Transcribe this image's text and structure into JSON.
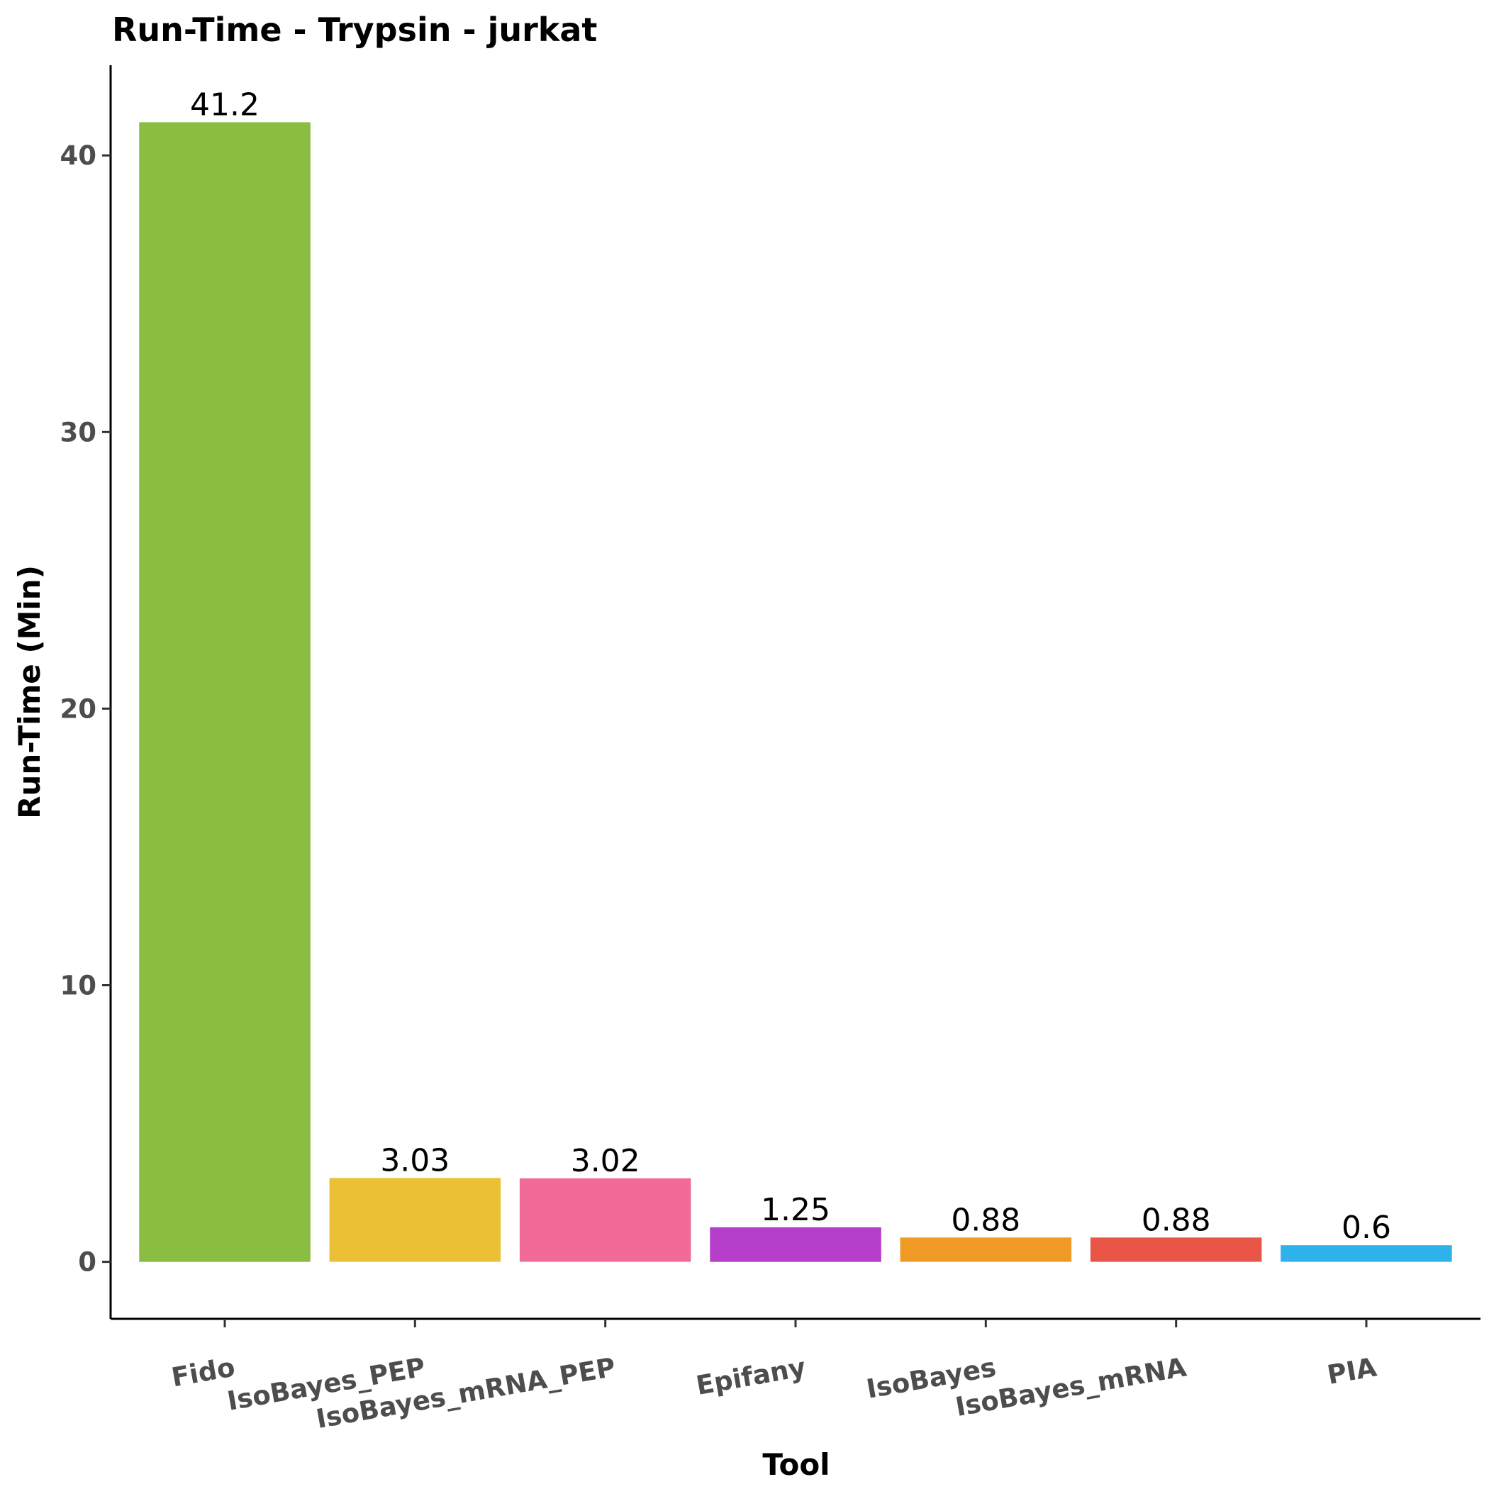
{
  "chart_data": {
    "type": "bar",
    "title": "Run-Time - Trypsin - jurkat",
    "xlabel": "Tool",
    "ylabel": "Run-Time (Min)",
    "categories": [
      "Fido",
      "IsoBayes_PEP",
      "IsoBayes_mRNA_PEP",
      "Epifany",
      "IsoBayes",
      "IsoBayes_mRNA",
      "PIA"
    ],
    "values": [
      41.2,
      3.03,
      3.02,
      1.25,
      0.88,
      0.88,
      0.6
    ],
    "value_labels": [
      "41.2",
      "3.03",
      "3.02",
      "1.25",
      "0.88",
      "0.88",
      "0.6"
    ],
    "colors": [
      "#8bbd43",
      "#ebc035",
      "#f26b98",
      "#b53fcb",
      "#ee9a25",
      "#e95546",
      "#2db2ec"
    ],
    "yticks": [
      0,
      10,
      20,
      30,
      40
    ],
    "ytick_labels": [
      "0",
      "10",
      "20",
      "30",
      "40"
    ],
    "ylim": [
      -2.06,
      43.26
    ],
    "grid": false,
    "legend": "none"
  }
}
